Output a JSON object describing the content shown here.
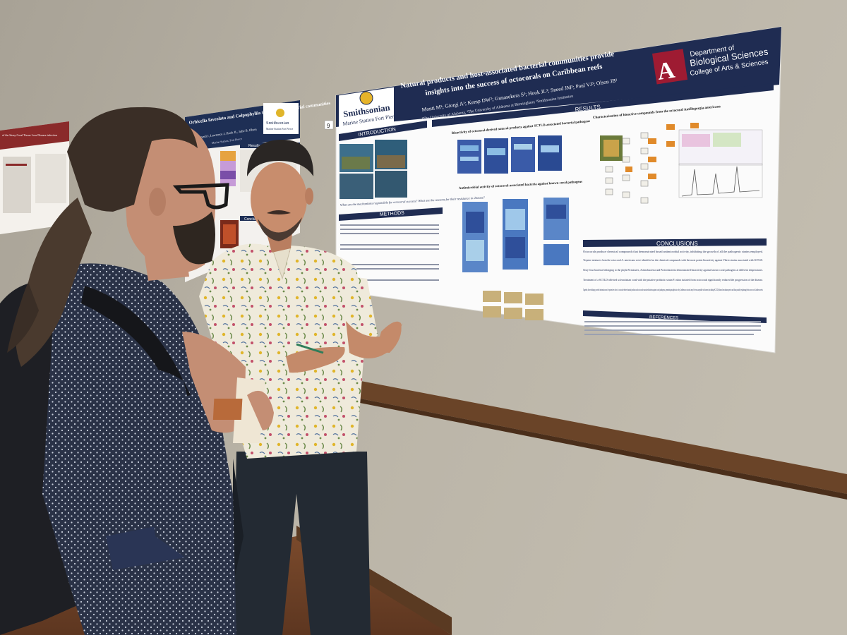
{
  "main_poster": {
    "institution_left": "Smithsonian",
    "institution_left_sub": "Marine Station Fort Pierce",
    "title_line1": "Natural products and host-associated bacterial communities provide",
    "title_line2": "insights into the success of octocorals on Caribbean reefs",
    "authors": "Monti M¹; Giorgi A¹; Kemp DW²; Gunasekera S³; Hook JL³; Sneed JM³; Paul VJ³; Olson JB¹",
    "affiliations": "¹The University of Alabama, ²The University of Alabama at Birmingham; ³Smithsonian Institution",
    "dept_line1": "Department of",
    "dept_line2": "Biological Sciences",
    "dept_line3": "College of Arts & Sciences",
    "poster_number": "9",
    "sections": {
      "introduction": "INTRODUCTION",
      "methods": "METHODS",
      "results": "RESULTS",
      "conclusions": "CONCLUSIONS",
      "references": "REFERENCES"
    },
    "intro_questions": "What are the mechanisms responsible for octocoral success? What are the reasons for their resistance to disease?",
    "results_heading_1": "Bioactivity of octocoral-derived natural products against SCTLD-associated bacterial pathogens",
    "results_heading_2": "Characterization of bioactive compounds from the octocoral Antillogorgia americana",
    "results_heading_3": "Antimicrobial activity of octocoral-associated bacteria against known coral pathogens",
    "conclusions": [
      "Octocorals produce chemical compounds that demonstrated broad antimicrobial activity, inhibiting the growth of all the pathogenic strains employed.",
      "Terpene mixtures from the octocoral A. americana were identified as the chemical compounds with the most potent bioactivity against Vibrio strains associated with SCTLD.",
      "Sixty-four bacteria belonging to the phyla Firmicutes, Actinobacteria and Proteobacteria demonstrated bioactivity against known coral pathogens at different temperatures.",
      "Treatment of a SCTLD-affected scleractinian coral with the putative probiotic strain P. rubra isolated from octocorals significantly reduced the progression of the disease.",
      "Together, these findings provide information on the protective roles of octocoral-derived natural products and octocoral-associated bacteria against coral pathogens, generating insights into why Caribbean octocorals may be less susceptible to diseases (including SCTLD) than scleractinian species and thus possibly explaining their success on Caribbean reefs."
    ]
  },
  "left_poster": {
    "title": "Orbicella faveolata and Colpophyllia their surface bacterial communities",
    "authors": "Sneed J, Lawrence J, Hook JL, Julie B. Olson",
    "affiliation": "Marine Station, Fort Pierce",
    "results_label": "Results",
    "conclusions_label": "Conclusions",
    "institution": "Smithsonian",
    "institution_sub": "Marine Station Fort Pierce"
  },
  "far_left_poster": {
    "title": "of the Stony Coral Tissue Loss Disease infection"
  }
}
